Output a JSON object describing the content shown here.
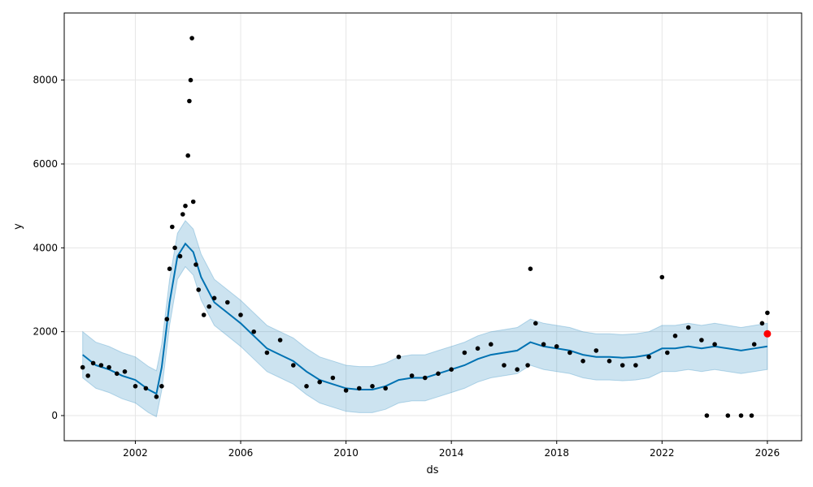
{
  "chart_data": {
    "type": "scatter",
    "title": "",
    "xlabel": "ds",
    "ylabel": "y",
    "xlim": [
      1999.3,
      2027.3
    ],
    "ylim": [
      -600,
      9600
    ],
    "grid": true,
    "x_ticks": [
      2002,
      2006,
      2010,
      2014,
      2018,
      2022,
      2026
    ],
    "x_tick_labels": [
      "2002",
      "2006",
      "2010",
      "2014",
      "2018",
      "2022",
      "2026"
    ],
    "y_ticks": [
      0,
      2000,
      4000,
      6000,
      8000
    ],
    "y_tick_labels": [
      "0",
      "2000",
      "4000",
      "6000",
      "8000"
    ],
    "colors": {
      "observed": "#000000",
      "forecast_line": "#0072B2",
      "uncertainty_band": "#0072B2",
      "highlight": "#ff0000",
      "grid": "#e6e6e6"
    },
    "series": [
      {
        "kind": "forecast",
        "points": [
          [
            2000.0,
            1450
          ],
          [
            2000.5,
            1200
          ],
          [
            2001.0,
            1100
          ],
          [
            2001.5,
            950
          ],
          [
            2002.0,
            850
          ],
          [
            2002.5,
            620
          ],
          [
            2002.8,
            520
          ],
          [
            2003.0,
            1150
          ],
          [
            2003.3,
            2700
          ],
          [
            2003.6,
            3800
          ],
          [
            2003.9,
            4100
          ],
          [
            2004.2,
            3900
          ],
          [
            2004.5,
            3300
          ],
          [
            2005.0,
            2700
          ],
          [
            2005.5,
            2450
          ],
          [
            2006.0,
            2200
          ],
          [
            2006.5,
            1900
          ],
          [
            2007.0,
            1600
          ],
          [
            2007.5,
            1450
          ],
          [
            2008.0,
            1300
          ],
          [
            2008.5,
            1050
          ],
          [
            2009.0,
            850
          ],
          [
            2009.5,
            750
          ],
          [
            2010.0,
            650
          ],
          [
            2010.5,
            620
          ],
          [
            2011.0,
            620
          ],
          [
            2011.5,
            700
          ],
          [
            2012.0,
            850
          ],
          [
            2012.5,
            900
          ],
          [
            2013.0,
            900
          ],
          [
            2013.5,
            1000
          ],
          [
            2014.0,
            1100
          ],
          [
            2014.5,
            1200
          ],
          [
            2015.0,
            1350
          ],
          [
            2015.5,
            1450
          ],
          [
            2016.0,
            1500
          ],
          [
            2016.5,
            1550
          ],
          [
            2017.0,
            1750
          ],
          [
            2017.5,
            1650
          ],
          [
            2018.0,
            1600
          ],
          [
            2018.5,
            1550
          ],
          [
            2019.0,
            1450
          ],
          [
            2019.5,
            1400
          ],
          [
            2020.0,
            1400
          ],
          [
            2020.5,
            1380
          ],
          [
            2021.0,
            1400
          ],
          [
            2021.5,
            1450
          ],
          [
            2022.0,
            1600
          ],
          [
            2022.5,
            1600
          ],
          [
            2023.0,
            1650
          ],
          [
            2023.5,
            1600
          ],
          [
            2024.0,
            1650
          ],
          [
            2024.5,
            1600
          ],
          [
            2025.0,
            1550
          ],
          [
            2025.5,
            1600
          ],
          [
            2026.0,
            1650
          ]
        ],
        "band_halfwidth": 550
      },
      {
        "kind": "observed",
        "points": [
          [
            2000.0,
            1150
          ],
          [
            2000.2,
            950
          ],
          [
            2000.4,
            1250
          ],
          [
            2000.7,
            1200
          ],
          [
            2001.0,
            1150
          ],
          [
            2001.3,
            1000
          ],
          [
            2001.6,
            1050
          ],
          [
            2002.0,
            700
          ],
          [
            2002.4,
            650
          ],
          [
            2002.8,
            450
          ],
          [
            2003.0,
            700
          ],
          [
            2003.2,
            2300
          ],
          [
            2003.3,
            3500
          ],
          [
            2003.4,
            4500
          ],
          [
            2003.5,
            4000
          ],
          [
            2003.7,
            3800
          ],
          [
            2003.8,
            4800
          ],
          [
            2003.9,
            5000
          ],
          [
            2004.0,
            6200
          ],
          [
            2004.05,
            7500
          ],
          [
            2004.1,
            8000
          ],
          [
            2004.15,
            9000
          ],
          [
            2004.2,
            5100
          ],
          [
            2004.3,
            3600
          ],
          [
            2004.4,
            3000
          ],
          [
            2004.6,
            2400
          ],
          [
            2004.8,
            2600
          ],
          [
            2005.0,
            2800
          ],
          [
            2005.5,
            2700
          ],
          [
            2006.0,
            2400
          ],
          [
            2006.5,
            2000
          ],
          [
            2007.0,
            1500
          ],
          [
            2007.5,
            1800
          ],
          [
            2008.0,
            1200
          ],
          [
            2008.5,
            700
          ],
          [
            2009.0,
            800
          ],
          [
            2009.5,
            900
          ],
          [
            2010.0,
            600
          ],
          [
            2010.5,
            650
          ],
          [
            2011.0,
            700
          ],
          [
            2011.5,
            650
          ],
          [
            2012.0,
            1400
          ],
          [
            2012.5,
            950
          ],
          [
            2013.0,
            900
          ],
          [
            2013.5,
            1000
          ],
          [
            2014.0,
            1100
          ],
          [
            2014.5,
            1500
          ],
          [
            2015.0,
            1600
          ],
          [
            2015.5,
            1700
          ],
          [
            2016.0,
            1200
          ],
          [
            2016.5,
            1100
          ],
          [
            2016.9,
            1200
          ],
          [
            2017.0,
            3500
          ],
          [
            2017.2,
            2200
          ],
          [
            2017.5,
            1700
          ],
          [
            2018.0,
            1650
          ],
          [
            2018.5,
            1500
          ],
          [
            2019.0,
            1300
          ],
          [
            2019.5,
            1550
          ],
          [
            2020.0,
            1300
          ],
          [
            2020.5,
            1200
          ],
          [
            2021.0,
            1200
          ],
          [
            2021.5,
            1400
          ],
          [
            2022.0,
            3300
          ],
          [
            2022.2,
            1500
          ],
          [
            2022.5,
            1900
          ],
          [
            2023.0,
            2100
          ],
          [
            2023.5,
            1800
          ],
          [
            2023.7,
            0
          ],
          [
            2024.0,
            1700
          ],
          [
            2024.5,
            0
          ],
          [
            2025.0,
            0
          ],
          [
            2025.4,
            0
          ],
          [
            2025.5,
            1700
          ],
          [
            2025.8,
            2200
          ],
          [
            2026.0,
            2450
          ]
        ]
      },
      {
        "kind": "highlight",
        "points": [
          [
            2026.0,
            1950
          ]
        ]
      }
    ]
  }
}
